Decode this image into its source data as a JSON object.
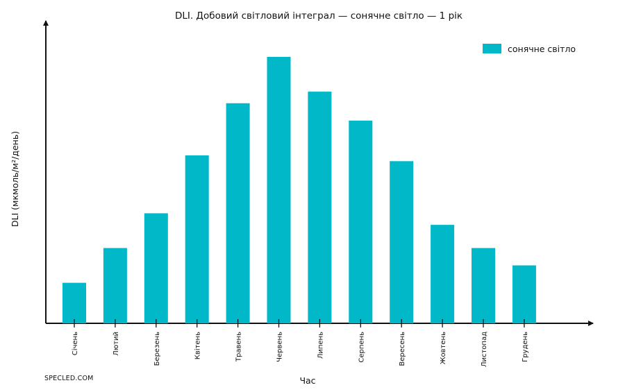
{
  "chart_data": {
    "type": "bar",
    "title": "DLI. Добовий світловий інтеграл — сонячне світло — 1 рік",
    "xlabel": "Час",
    "ylabel": "DLI (мкмоль/м²/день)",
    "categories": [
      "Січень",
      "Лютий",
      "Березень",
      "Квітень",
      "Травень",
      "Червень",
      "Липень",
      "Серпень",
      "Вересень",
      "Жовтень",
      "Листопад",
      "Грудень"
    ],
    "series": [
      {
        "name": "сонячне світло",
        "values": [
          7,
          13,
          19,
          29,
          38,
          46,
          40,
          35,
          28,
          17,
          13,
          10
        ]
      }
    ],
    "ylim": [
      0,
      46
    ],
    "y_ticks_shown": false,
    "grid": false,
    "legend": "top-right",
    "colors": {
      "bar": "#00B8C8",
      "axis": "#111111",
      "background": "#FFFFFF"
    }
  },
  "watermark": "SPECLED.COM"
}
